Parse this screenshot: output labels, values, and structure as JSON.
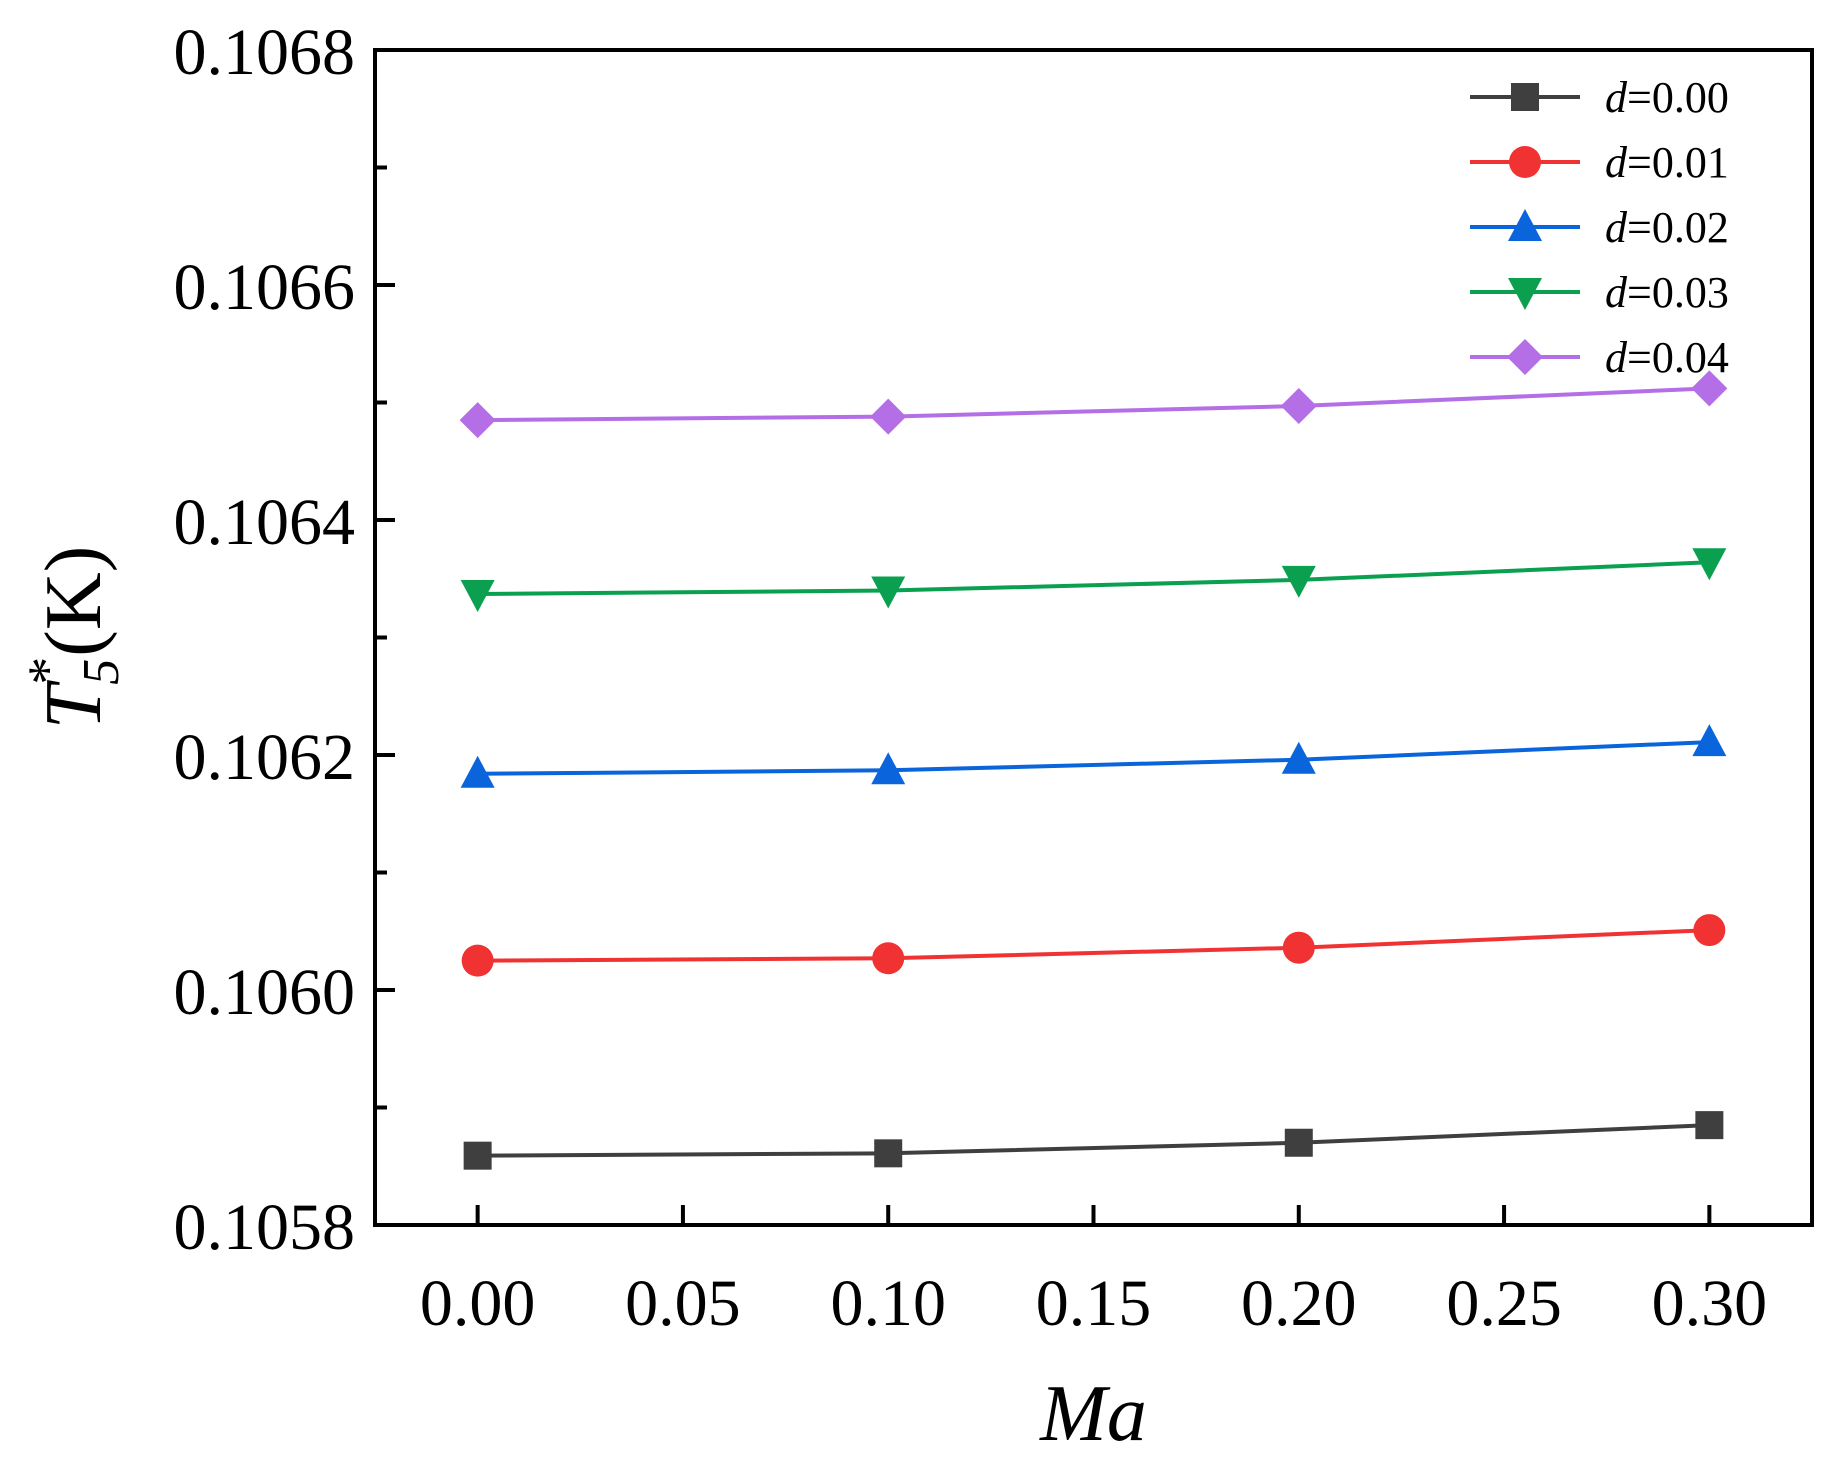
{
  "chart_data": {
    "type": "line",
    "x": [
      0.0,
      0.1,
      0.2,
      0.3
    ],
    "xlabel": "Ma",
    "ylabel": {
      "main": "T",
      "superscript": "*",
      "subscript": "5",
      "unit": "(K)"
    },
    "xlim": [
      -0.025,
      0.325
    ],
    "ylim": [
      0.1058,
      0.1068
    ],
    "xticks": [
      0.0,
      0.05,
      0.1,
      0.15,
      0.2,
      0.25,
      0.3
    ],
    "xtick_labels": [
      "0.00",
      "0.05",
      "0.10",
      "0.15",
      "0.20",
      "0.25",
      "0.30"
    ],
    "yticks": [
      0.1058,
      0.106,
      0.1062,
      0.1064,
      0.1066,
      0.1068
    ],
    "ytick_labels": [
      "0.1058",
      "0.1060",
      "0.1062",
      "0.1064",
      "0.1066",
      "0.1068"
    ],
    "legend_position": "top-right",
    "series": [
      {
        "name": "d=0.00",
        "symbol_var": "d",
        "symbol_value": "=0.00",
        "marker": "square",
        "color": "#3f3f3f",
        "values": [
          0.105859,
          0.105861,
          0.10587,
          0.105885
        ]
      },
      {
        "name": "d=0.01",
        "symbol_var": "d",
        "symbol_value": "=0.01",
        "marker": "circle",
        "color": "#f03232",
        "values": [
          0.106025,
          0.106027,
          0.106036,
          0.106051
        ]
      },
      {
        "name": "d=0.02",
        "symbol_var": "d",
        "symbol_value": "=0.02",
        "marker": "triangle-up",
        "color": "#0a64dc",
        "values": [
          0.106184,
          0.106187,
          0.106196,
          0.106211
        ]
      },
      {
        "name": "d=0.03",
        "symbol_var": "d",
        "symbol_value": "=0.03",
        "marker": "triangle-down",
        "color": "#0aa050",
        "values": [
          0.106337,
          0.10634,
          0.106349,
          0.106364
        ]
      },
      {
        "name": "d=0.04",
        "symbol_var": "d",
        "symbol_value": "=0.04",
        "marker": "diamond",
        "color": "#b46ee6",
        "values": [
          0.106485,
          0.106488,
          0.106497,
          0.106512
        ]
      }
    ]
  }
}
